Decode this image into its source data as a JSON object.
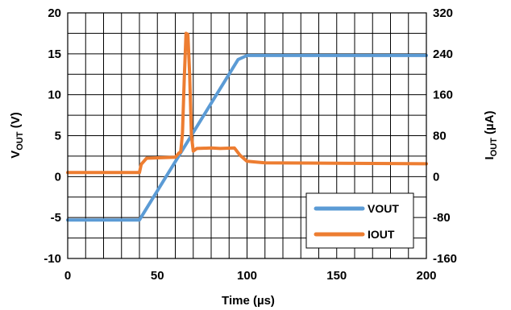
{
  "chart_data": {
    "type": "line",
    "xlabel": "Time (µs)",
    "ylabel_left": {
      "main": "V",
      "sub": "OUT",
      "unit": " (V)"
    },
    "ylabel_right": {
      "main": "I",
      "sub": "OUT",
      "unit": " (µA)"
    },
    "xlim": [
      0,
      200
    ],
    "ylim_left": [
      -10,
      20
    ],
    "ylim_right": [
      -160,
      320
    ],
    "x_ticks": [
      "0",
      "50",
      "100",
      "150",
      "200"
    ],
    "y_ticks_left": [
      "-10",
      "-5",
      "0",
      "5",
      "10",
      "15",
      "20"
    ],
    "y_ticks_right": [
      "-160",
      "-80",
      "0",
      "80",
      "160",
      "240",
      "320"
    ],
    "grid": true,
    "legend_position": "bottom-right",
    "series": [
      {
        "name": "VOUT",
        "axis": "left",
        "color": "#5b9bd5",
        "points": [
          [
            0,
            -5.3
          ],
          [
            40,
            -5.3
          ],
          [
            95,
            14.3
          ],
          [
            100,
            14.8
          ],
          [
            200,
            14.8
          ]
        ]
      },
      {
        "name": "IOUT",
        "axis": "right",
        "color": "#ed7d31",
        "points": [
          [
            0,
            8
          ],
          [
            40,
            8
          ],
          [
            41,
            24
          ],
          [
            44,
            36
          ],
          [
            60,
            38
          ],
          [
            62,
            46
          ],
          [
            63,
            48
          ],
          [
            64,
            85
          ],
          [
            65,
            190
          ],
          [
            66,
            280
          ],
          [
            67,
            278
          ],
          [
            68,
            200
          ],
          [
            69,
            80
          ],
          [
            70,
            50
          ],
          [
            72,
            55
          ],
          [
            80,
            56
          ],
          [
            85,
            55
          ],
          [
            93,
            56
          ],
          [
            96,
            42
          ],
          [
            100,
            30
          ],
          [
            110,
            27
          ],
          [
            150,
            26
          ],
          [
            200,
            25
          ]
        ]
      }
    ]
  }
}
